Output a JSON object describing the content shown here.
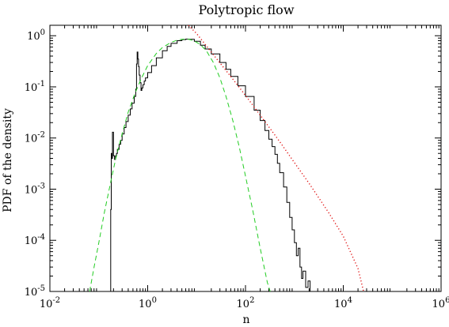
{
  "chart_data": {
    "type": "line",
    "title": "Polytropic flow",
    "xlabel": "n",
    "ylabel": "PDF of the density",
    "x_scale": "log",
    "y_scale": "log",
    "xlim": [
      0.01,
      1000000
    ],
    "ylim": [
      1e-05,
      1.6
    ],
    "x_ticks": [
      {
        "value": 0.01,
        "base": "10",
        "exp": "-2"
      },
      {
        "value": 1,
        "base": "10",
        "exp": "0"
      },
      {
        "value": 100,
        "base": "10",
        "exp": "2"
      },
      {
        "value": 10000,
        "base": "10",
        "exp": "4"
      },
      {
        "value": 1000000,
        "base": "10",
        "exp": "6"
      }
    ],
    "y_ticks": [
      {
        "value": 1e-05,
        "base": "10",
        "exp": "-5"
      },
      {
        "value": 0.0001,
        "base": "10",
        "exp": "-4"
      },
      {
        "value": 0.001,
        "base": "10",
        "exp": "-3"
      },
      {
        "value": 0.01,
        "base": "10",
        "exp": "-2"
      },
      {
        "value": 0.1,
        "base": "10",
        "exp": "-1"
      },
      {
        "value": 1,
        "base": "10",
        "exp": "0"
      }
    ],
    "grid": false,
    "legend": "none",
    "series": [
      {
        "style": "histogram",
        "color": "#000000",
        "points": [
          [
            0.17,
            1e-05
          ],
          [
            0.175,
            0.0004
          ],
          [
            0.18,
            0.005
          ],
          [
            0.185,
            0.004
          ],
          [
            0.19,
            0.013
          ],
          [
            0.2,
            0.0045
          ],
          [
            0.21,
            0.0038
          ],
          [
            0.22,
            0.0045
          ],
          [
            0.23,
            0.005
          ],
          [
            0.24,
            0.006
          ],
          [
            0.26,
            0.0075
          ],
          [
            0.28,
            0.009
          ],
          [
            0.3,
            0.012
          ],
          [
            0.33,
            0.016
          ],
          [
            0.36,
            0.021
          ],
          [
            0.4,
            0.028
          ],
          [
            0.44,
            0.037
          ],
          [
            0.48,
            0.048
          ],
          [
            0.53,
            0.065
          ],
          [
            0.57,
            0.09
          ],
          [
            0.59,
            0.28
          ],
          [
            0.61,
            0.48
          ],
          [
            0.63,
            0.35
          ],
          [
            0.65,
            0.25
          ],
          [
            0.67,
            0.17
          ],
          [
            0.7,
            0.12
          ],
          [
            0.73,
            0.085
          ],
          [
            0.76,
            0.095
          ],
          [
            0.8,
            0.11
          ],
          [
            0.85,
            0.13
          ],
          [
            0.9,
            0.15
          ],
          [
            1.0,
            0.19
          ],
          [
            1.2,
            0.26
          ],
          [
            1.5,
            0.37
          ],
          [
            2.0,
            0.51
          ],
          [
            2.5,
            0.62
          ],
          [
            3.0,
            0.71
          ],
          [
            4.0,
            0.8
          ],
          [
            5.0,
            0.84
          ],
          [
            6.0,
            0.86
          ],
          [
            7.0,
            0.85
          ],
          [
            9.0,
            0.78
          ],
          [
            12.0,
            0.65
          ],
          [
            15.0,
            0.55
          ],
          [
            20.0,
            0.44
          ],
          [
            30.0,
            0.3
          ],
          [
            40.0,
            0.22
          ],
          [
            50.0,
            0.16
          ],
          [
            70.0,
            0.105
          ],
          [
            100.0,
            0.065
          ],
          [
            150.0,
            0.035
          ],
          [
            200.0,
            0.022
          ],
          [
            250.0,
            0.014
          ],
          [
            300.0,
            0.0095
          ],
          [
            350.0,
            0.0068
          ],
          [
            400.0,
            0.0048
          ],
          [
            450.0,
            0.0032
          ],
          [
            500.0,
            0.0021
          ],
          [
            600.0,
            0.0011
          ],
          [
            700.0,
            0.00055
          ],
          [
            800.0,
            0.00028
          ],
          [
            900.0,
            0.00016
          ],
          [
            1000.0,
            9e-05
          ],
          [
            1100.0,
            5e-05
          ],
          [
            1200.0,
            7e-05
          ],
          [
            1300.0,
            3e-05
          ],
          [
            1400.0,
            1.8e-05
          ],
          [
            1500.0,
            2.5e-05
          ],
          [
            1700.0,
            1.2e-05
          ],
          [
            1900.0,
            1.6e-05
          ],
          [
            2100.0,
            1e-05
          ]
        ]
      },
      {
        "style": "dashed",
        "color": "#22cc22",
        "points": [
          [
            0.065,
            1e-05
          ],
          [
            0.08,
            3e-05
          ],
          [
            0.1,
            9e-05
          ],
          [
            0.13,
            0.00035
          ],
          [
            0.17,
            0.0012
          ],
          [
            0.22,
            0.0038
          ],
          [
            0.3,
            0.012
          ],
          [
            0.4,
            0.032
          ],
          [
            0.55,
            0.075
          ],
          [
            0.75,
            0.15
          ],
          [
            1.0,
            0.26
          ],
          [
            1.5,
            0.45
          ],
          [
            2.0,
            0.59
          ],
          [
            3.0,
            0.74
          ],
          [
            4.0,
            0.82
          ],
          [
            5.0,
            0.85
          ],
          [
            6.0,
            0.86
          ],
          [
            7.0,
            0.85
          ],
          [
            9.0,
            0.79
          ],
          [
            12.0,
            0.67
          ],
          [
            16.0,
            0.5
          ],
          [
            22.0,
            0.3
          ],
          [
            30.0,
            0.15
          ],
          [
            40.0,
            0.065
          ],
          [
            55.0,
            0.022
          ],
          [
            75.0,
            0.0065
          ],
          [
            100.0,
            0.0018
          ],
          [
            140.0,
            0.0004
          ],
          [
            200.0,
            7e-05
          ],
          [
            280.0,
            1.5e-05
          ],
          [
            320.0,
            1e-05
          ]
        ]
      },
      {
        "style": "dotted",
        "color": "#e01010",
        "points": [
          [
            6.8,
            1.6
          ],
          [
            10.0,
            1.1
          ],
          [
            20.0,
            0.48
          ],
          [
            50.0,
            0.16
          ],
          [
            100.0,
            0.068
          ],
          [
            200.0,
            0.028
          ],
          [
            500.0,
            0.0085
          ],
          [
            1000.0,
            0.0033
          ],
          [
            2000.0,
            0.0013
          ],
          [
            5000.0,
            0.00035
          ],
          [
            10000.0,
            0.00012
          ],
          [
            20000.0,
            2.8e-05
          ],
          [
            26000.0,
            1e-05
          ]
        ]
      }
    ]
  }
}
